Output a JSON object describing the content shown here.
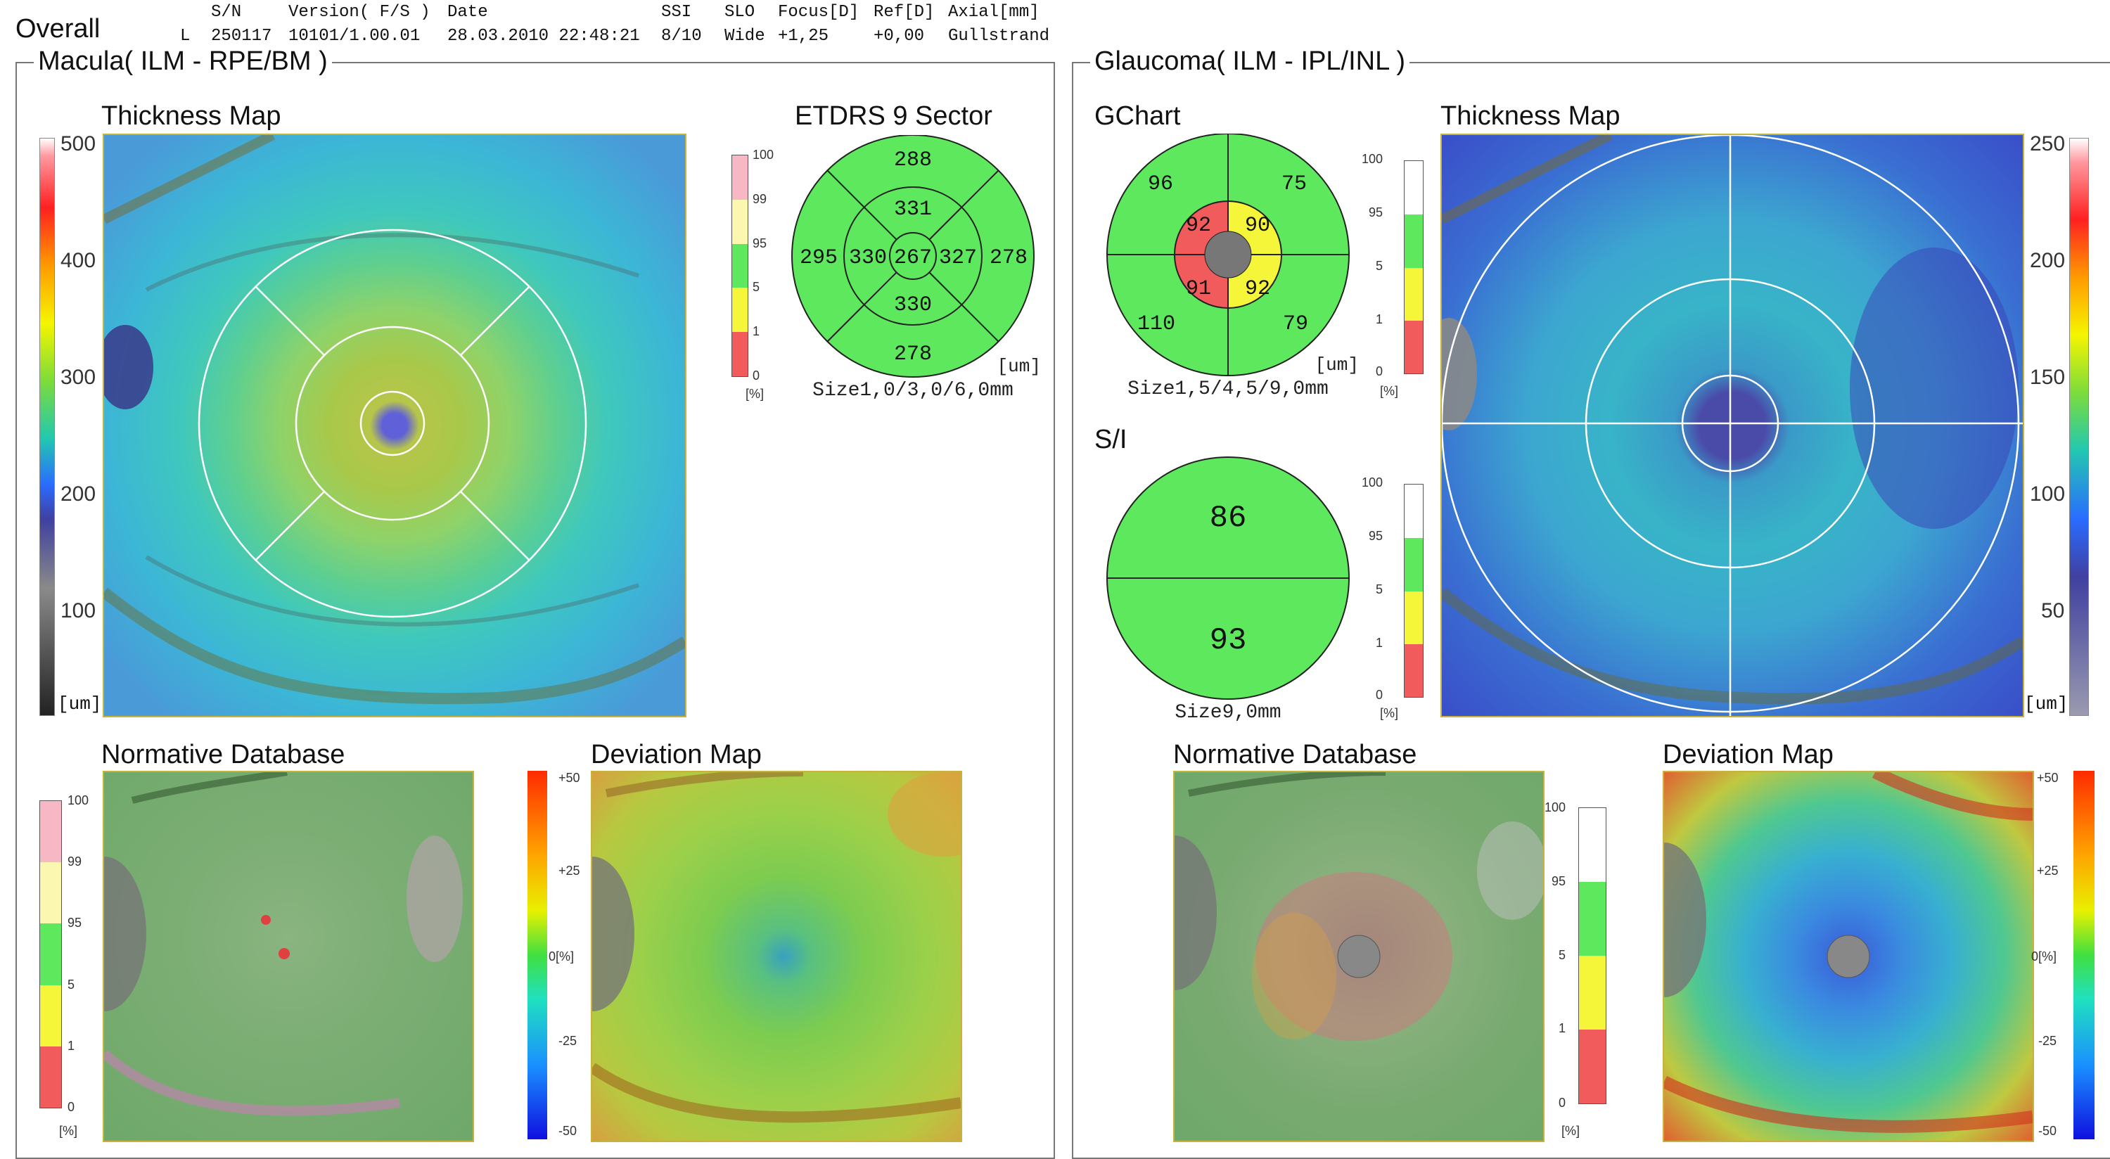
{
  "report": {
    "title": "Overall",
    "header": {
      "labels": [
        "S/N",
        "Version( F/S )",
        "Date",
        "SSI",
        "SLO",
        "Focus[D]",
        "Ref[D]",
        "Axial[mm]"
      ],
      "eye": "L",
      "sn": "250117",
      "version": "10101/1.00.01",
      "date": "28.03.2010 22:48:21",
      "ssi": "8/10",
      "slo": "Wide",
      "focus": "+1,25",
      "ref": "+0,00",
      "axial": "Gullstrand"
    }
  },
  "macula": {
    "frame_title": "Macula( ILM - RPE/BM )",
    "thickness_map": {
      "title": "Thickness Map",
      "scale_labels": [
        "500",
        "400",
        "300",
        "200",
        "100"
      ],
      "unit": "[um]"
    },
    "etdrs": {
      "title": "ETDRS 9 Sector",
      "values": {
        "outer_sup": "288",
        "inner_sup": "331",
        "outer_temp": "295",
        "inner_temp": "330",
        "center": "267",
        "inner_nasal": "327",
        "outer_nasal": "278",
        "inner_inf": "330",
        "outer_inf": "278"
      },
      "unit": "[um]",
      "size": "Size1,0/3,0/6,0mm",
      "legend_labels": [
        "100",
        "99",
        "95",
        "5",
        "1",
        "0"
      ],
      "legend_unit": "[%]"
    },
    "normative": {
      "title": "Normative Database",
      "legend_labels": [
        "100",
        "99",
        "95",
        "5",
        "1",
        "0"
      ],
      "legend_unit": "[%]"
    },
    "deviation": {
      "title": "Deviation Map",
      "scale_labels": [
        "+50",
        "+25",
        "0[%]",
        "-25",
        "-50"
      ]
    }
  },
  "glaucoma": {
    "frame_title": "Glaucoma( ILM - IPL/INL )",
    "gchart": {
      "title": "GChart",
      "values": {
        "outer_st": "96",
        "outer_sn": "75",
        "inner_st": "92",
        "inner_sn": "90",
        "inner_it": "91",
        "inner_in": "92",
        "outer_it": "110",
        "outer_in": "79"
      },
      "unit": "[um]",
      "size": "Size1,5/4,5/9,0mm",
      "legend_labels": [
        "100",
        "95",
        "5",
        "1",
        "0"
      ],
      "legend_unit": "[%]"
    },
    "si": {
      "title": "S/I",
      "superior": "86",
      "inferior": "93",
      "size": "Size9,0mm",
      "legend_labels": [
        "100",
        "95",
        "5",
        "1",
        "0"
      ],
      "legend_unit": "[%]"
    },
    "thickness_map": {
      "title": "Thickness Map",
      "scale_labels": [
        "250",
        "200",
        "150",
        "100",
        "50"
      ],
      "unit": "[um]"
    },
    "normative": {
      "title": "Normative Database",
      "legend_labels": [
        "100",
        "95",
        "5",
        "1",
        "0"
      ],
      "legend_unit": "[%]"
    },
    "deviation": {
      "title": "Deviation Map",
      "scale_labels": [
        "+50",
        "+25",
        "0[%]",
        "-25",
        "-50"
      ]
    }
  },
  "colors": {
    "green": "#5ee85e",
    "yellow": "#f5f53a",
    "red": "#f25b5b",
    "pink": "#f7b7c4",
    "paleyellow": "#fbf7b0",
    "frame": "#777777",
    "map_border": "#c9b23a"
  }
}
